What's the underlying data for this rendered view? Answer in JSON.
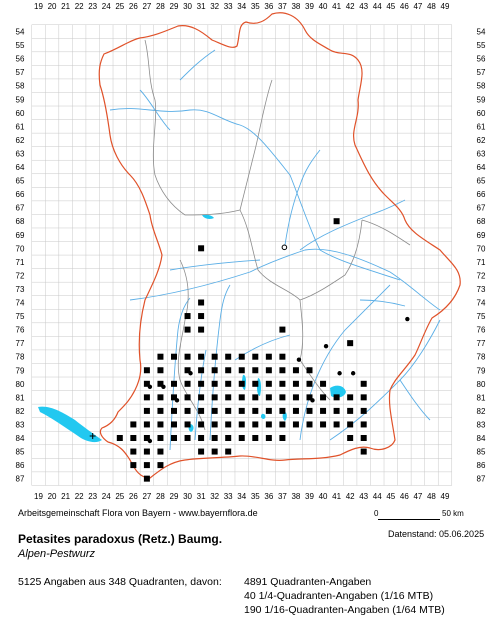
{
  "grid": {
    "columns": [
      "19",
      "20",
      "21",
      "22",
      "23",
      "24",
      "25",
      "26",
      "27",
      "28",
      "29",
      "30",
      "31",
      "32",
      "33",
      "34",
      "35",
      "36",
      "37",
      "38",
      "39",
      "40",
      "41",
      "42",
      "43",
      "44",
      "45",
      "46",
      "47",
      "48",
      "49"
    ],
    "rows": [
      "54",
      "55",
      "56",
      "57",
      "58",
      "59",
      "60",
      "61",
      "62",
      "63",
      "64",
      "65",
      "66",
      "67",
      "68",
      "69",
      "70",
      "71",
      "72",
      "73",
      "74",
      "75",
      "76",
      "77",
      "78",
      "79",
      "80",
      "81",
      "82",
      "83",
      "84",
      "85",
      "86",
      "87"
    ]
  },
  "credit": "Arbeitsgemeinschaft Flora von Bayern - www.bayernflora.de",
  "scale": {
    "start": "0",
    "end": "50 km"
  },
  "date": "Datenstand: 05.06.2025",
  "species": {
    "scientific": "Petasites paradoxus (Retz.) Baumg.",
    "common": "Alpen-Pestwurz"
  },
  "stats": {
    "summary": "5125 Angaben aus 348 Quadranten, davon:",
    "lines": [
      "4891 Quadranten-Angaben",
      "40 1/4-Quadranten-Angaben (1/16 MTB)",
      "190 1/16-Quadranten-Angaben (1/64 MTB)"
    ]
  },
  "colors": {
    "grid": "#c8c8c8",
    "state_border": "#e0522a",
    "district_border": "#8c8c8c",
    "rivers": "#5aaee6",
    "lakes": "#22c8f0",
    "markers": "#000000"
  },
  "occurrences": {
    "quadrants": [
      [
        31,
        70
      ],
      [
        41,
        68
      ],
      [
        37,
        76
      ],
      [
        42,
        77
      ],
      [
        43,
        80
      ],
      [
        31,
        74
      ],
      [
        30,
        75
      ],
      [
        31,
        75
      ],
      [
        30,
        76
      ],
      [
        31,
        76
      ],
      [
        28,
        78
      ],
      [
        29,
        78
      ],
      [
        30,
        78
      ],
      [
        31,
        78
      ],
      [
        32,
        78
      ],
      [
        33,
        78
      ],
      [
        34,
        78
      ],
      [
        35,
        78
      ],
      [
        36,
        78
      ],
      [
        37,
        78
      ],
      [
        27,
        79
      ],
      [
        28,
        79
      ],
      [
        30,
        79
      ],
      [
        31,
        79
      ],
      [
        32,
        79
      ],
      [
        33,
        79
      ],
      [
        34,
        79
      ],
      [
        35,
        79
      ],
      [
        36,
        79
      ],
      [
        37,
        79
      ],
      [
        38,
        79
      ],
      [
        39,
        79
      ],
      [
        27,
        80
      ],
      [
        28,
        80
      ],
      [
        29,
        80
      ],
      [
        30,
        80
      ],
      [
        31,
        80
      ],
      [
        32,
        80
      ],
      [
        33,
        80
      ],
      [
        34,
        80
      ],
      [
        35,
        80
      ],
      [
        36,
        80
      ],
      [
        37,
        80
      ],
      [
        38,
        80
      ],
      [
        39,
        80
      ],
      [
        40,
        80
      ],
      [
        27,
        81
      ],
      [
        28,
        81
      ],
      [
        29,
        81
      ],
      [
        30,
        81
      ],
      [
        31,
        81
      ],
      [
        32,
        81
      ],
      [
        33,
        81
      ],
      [
        34,
        81
      ],
      [
        35,
        81
      ],
      [
        36,
        81
      ],
      [
        37,
        81
      ],
      [
        38,
        81
      ],
      [
        39,
        81
      ],
      [
        40,
        81
      ],
      [
        41,
        81
      ],
      [
        42,
        81
      ],
      [
        43,
        81
      ],
      [
        27,
        82
      ],
      [
        28,
        82
      ],
      [
        29,
        82
      ],
      [
        30,
        82
      ],
      [
        31,
        82
      ],
      [
        32,
        82
      ],
      [
        33,
        82
      ],
      [
        34,
        82
      ],
      [
        35,
        82
      ],
      [
        36,
        82
      ],
      [
        37,
        82
      ],
      [
        38,
        82
      ],
      [
        39,
        82
      ],
      [
        40,
        82
      ],
      [
        41,
        82
      ],
      [
        42,
        82
      ],
      [
        43,
        82
      ],
      [
        26,
        83
      ],
      [
        27,
        83
      ],
      [
        28,
        83
      ],
      [
        29,
        83
      ],
      [
        30,
        83
      ],
      [
        31,
        83
      ],
      [
        32,
        83
      ],
      [
        33,
        83
      ],
      [
        34,
        83
      ],
      [
        35,
        83
      ],
      [
        36,
        83
      ],
      [
        37,
        83
      ],
      [
        38,
        83
      ],
      [
        39,
        83
      ],
      [
        40,
        83
      ],
      [
        41,
        83
      ],
      [
        42,
        83
      ],
      [
        43,
        83
      ],
      [
        25,
        84
      ],
      [
        26,
        84
      ],
      [
        27,
        84
      ],
      [
        28,
        84
      ],
      [
        29,
        84
      ],
      [
        30,
        84
      ],
      [
        31,
        84
      ],
      [
        32,
        84
      ],
      [
        33,
        84
      ],
      [
        34,
        84
      ],
      [
        35,
        84
      ],
      [
        36,
        84
      ],
      [
        37,
        84
      ],
      [
        42,
        84
      ],
      [
        43,
        84
      ],
      [
        26,
        85
      ],
      [
        27,
        85
      ],
      [
        28,
        85
      ],
      [
        31,
        85
      ],
      [
        32,
        85
      ],
      [
        33,
        85
      ],
      [
        43,
        85
      ],
      [
        26,
        86
      ],
      [
        27,
        86
      ],
      [
        28,
        86
      ],
      [
        27,
        87
      ]
    ],
    "sixteenth": [
      [
        46,
        75
      ],
      [
        27,
        80
      ],
      [
        28,
        80
      ],
      [
        30,
        79
      ],
      [
        29,
        81
      ],
      [
        27,
        84
      ],
      [
        38,
        78
      ],
      [
        40,
        77
      ],
      [
        41,
        79
      ],
      [
        42,
        79
      ],
      [
        39,
        81
      ]
    ],
    "uncertain": [
      [
        37,
        70
      ]
    ],
    "plus": [
      [
        23,
        84
      ]
    ]
  }
}
